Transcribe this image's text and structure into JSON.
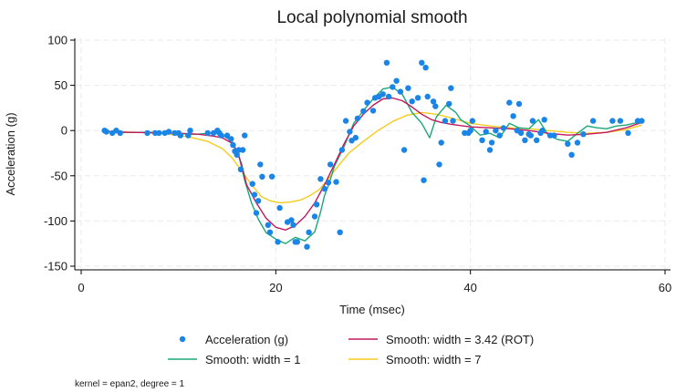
{
  "chart_data": {
    "type": "scatter",
    "title": "Local polynomial smooth",
    "xlabel": "Time (msec)",
    "ylabel": "Acceleration (g)",
    "xlim": [
      0,
      60
    ],
    "ylim": [
      -150,
      100
    ],
    "xticks": [
      0,
      20,
      40,
      60
    ],
    "yticks": [
      100,
      50,
      0,
      -50,
      -100,
      -150
    ],
    "grid": true,
    "legend_position": "bottom",
    "note": "kernel = epan2, degree = 1",
    "scatter": {
      "name": "Acceleration (g)",
      "color": "#1a85e6",
      "points": [
        [
          2.4,
          0
        ],
        [
          2.6,
          -1.3
        ],
        [
          3.2,
          -2.7
        ],
        [
          3.6,
          0
        ],
        [
          4,
          -2.7
        ],
        [
          6.8,
          -2.7
        ],
        [
          7.6,
          -2.7
        ],
        [
          8,
          -2.7
        ],
        [
          8.6,
          -2.7
        ],
        [
          9,
          -1.3
        ],
        [
          9.6,
          -2.7
        ],
        [
          10,
          -2.7
        ],
        [
          10.2,
          -5.4
        ],
        [
          11,
          -5.4
        ],
        [
          11.2,
          0
        ],
        [
          13,
          -2.7
        ],
        [
          13.6,
          -2.7
        ],
        [
          14,
          0
        ],
        [
          14.2,
          -2.7
        ],
        [
          14.4,
          -5.4
        ],
        [
          15,
          -5.4
        ],
        [
          15.4,
          -9.3
        ],
        [
          15.6,
          -16
        ],
        [
          15.8,
          -22.8
        ],
        [
          16,
          -26.8
        ],
        [
          16.2,
          -21.5
        ],
        [
          16.4,
          -42.9
        ],
        [
          16.6,
          -21.5
        ],
        [
          16.8,
          -5.4
        ],
        [
          17.6,
          -59
        ],
        [
          17.8,
          -71
        ],
        [
          18,
          -91.1
        ],
        [
          18.2,
          -77.7
        ],
        [
          18.4,
          -37.5
        ],
        [
          18.6,
          -51
        ],
        [
          19.2,
          -104.4
        ],
        [
          19.4,
          -112.5
        ],
        [
          19.6,
          -50.9
        ],
        [
          20.2,
          -123.1
        ],
        [
          20.4,
          -85.6
        ],
        [
          21.2,
          -101.2
        ],
        [
          21.6,
          -99.1
        ],
        [
          21.8,
          -104.4
        ],
        [
          22,
          -123.1
        ],
        [
          22.2,
          -123.1
        ],
        [
          23.2,
          -128.5
        ],
        [
          23.4,
          -112.5
        ],
        [
          24,
          -95.1
        ],
        [
          24.2,
          -81.8
        ],
        [
          24.6,
          -53.5
        ],
        [
          25,
          -64.4
        ],
        [
          25.4,
          -57.6
        ],
        [
          25.6,
          -37.5
        ],
        [
          26.2,
          -56.9
        ],
        [
          26.6,
          -112.5
        ],
        [
          26.8,
          -21.5
        ],
        [
          27.2,
          10.7
        ],
        [
          27.6,
          -1.3
        ],
        [
          27.8,
          -11.1
        ],
        [
          28.2,
          -8
        ],
        [
          28.4,
          13.4
        ],
        [
          29,
          21.5
        ],
        [
          29.4,
          30.8
        ],
        [
          30,
          22
        ],
        [
          30.2,
          36.2
        ],
        [
          30.6,
          37.5
        ],
        [
          31,
          40.2
        ],
        [
          31.4,
          75
        ],
        [
          31.6,
          37.5
        ],
        [
          32,
          48.2
        ],
        [
          32.4,
          54.9
        ],
        [
          32.8,
          42.9
        ],
        [
          33.2,
          -21.5
        ],
        [
          33.6,
          46.9
        ],
        [
          34,
          32.3
        ],
        [
          34.6,
          36.2
        ],
        [
          35,
          75
        ],
        [
          35.2,
          -54.9
        ],
        [
          35.4,
          69.6
        ],
        [
          35.6,
          37.5
        ],
        [
          36.2,
          32.2
        ],
        [
          36.4,
          26.8
        ],
        [
          36.8,
          -37.5
        ],
        [
          37,
          -13.4
        ],
        [
          37.4,
          10.7
        ],
        [
          37.8,
          29.5
        ],
        [
          38,
          46.9
        ],
        [
          38.2,
          10.7
        ],
        [
          39.4,
          -2.7
        ],
        [
          39.8,
          -2.7
        ],
        [
          40,
          0
        ],
        [
          40.2,
          10.7
        ],
        [
          41.2,
          -10.7
        ],
        [
          41.6,
          -1.3
        ],
        [
          42,
          -21.5
        ],
        [
          42.2,
          -13.3
        ],
        [
          42.6,
          0
        ],
        [
          43,
          -5.4
        ],
        [
          43.4,
          2.7
        ],
        [
          44,
          30.8
        ],
        [
          44.4,
          16
        ],
        [
          44.8,
          0
        ],
        [
          45,
          29.4
        ],
        [
          45.2,
          -2.7
        ],
        [
          45.6,
          -10.7
        ],
        [
          46,
          -4
        ],
        [
          46.2,
          -5.4
        ],
        [
          46.4,
          10.7
        ],
        [
          46.8,
          -10.7
        ],
        [
          47.2,
          -2.7
        ],
        [
          47.4,
          0
        ],
        [
          47.6,
          12
        ],
        [
          48.2,
          -5.4
        ],
        [
          48.6,
          -5.4
        ],
        [
          50,
          -14.7
        ],
        [
          50.4,
          -26.8
        ],
        [
          51,
          -13.4
        ],
        [
          51.6,
          -4
        ],
        [
          52.6,
          10.7
        ],
        [
          54.6,
          10.7
        ],
        [
          55.4,
          10.7
        ],
        [
          56.2,
          -2.7
        ],
        [
          57.2,
          10.7
        ],
        [
          57.6,
          10.7
        ]
      ]
    },
    "series": [
      {
        "name": "Smooth: width = 3.42 (ROT)",
        "color": "#c1185e",
        "x": [
          2.4,
          5,
          8,
          10,
          12,
          13.5,
          14.5,
          15.5,
          16,
          16.5,
          17,
          18,
          19,
          20,
          21,
          22,
          23,
          24,
          25,
          26,
          27,
          28,
          29,
          30,
          31,
          32,
          33,
          34,
          35,
          36,
          37,
          38,
          40,
          42,
          44,
          46,
          48,
          50,
          52,
          54,
          56,
          57.6
        ],
        "y": [
          -1,
          -2,
          -2.5,
          -3,
          -4,
          -6,
          -8,
          -14,
          -22,
          -38,
          -60,
          -80,
          -97,
          -107,
          -110,
          -105,
          -95,
          -80,
          -60,
          -38,
          -15,
          5,
          18,
          28,
          35,
          36,
          33,
          26,
          18,
          12,
          9,
          7,
          4,
          3,
          2,
          0,
          -3,
          -5,
          -4,
          -2,
          3,
          9
        ]
      },
      {
        "name": "Smooth: width = 1",
        "color": "#1aa877",
        "x": [
          2.4,
          4,
          6,
          8,
          10,
          11,
          12,
          13,
          14,
          14.5,
          15.5,
          16.2,
          16.8,
          17.5,
          18.2,
          19,
          20,
          21,
          22,
          23,
          24,
          24.6,
          25,
          25.5,
          26,
          27,
          28,
          29,
          30,
          31,
          32,
          33,
          34,
          35,
          35.8,
          36.5,
          37.5,
          38.5,
          39,
          40,
          41,
          42,
          43,
          44,
          45,
          46,
          47,
          48,
          49,
          50,
          51,
          52,
          53,
          54,
          55,
          56,
          57.6
        ],
        "y": [
          -1,
          -2,
          -2,
          -2,
          -3,
          -4,
          -4,
          -3,
          -3,
          -5,
          -12,
          -28,
          -55,
          -80,
          -98,
          -113,
          -120,
          -125,
          -118,
          -122,
          -112,
          -90,
          -72,
          -58,
          -40,
          -18,
          8,
          22,
          35,
          46,
          48,
          40,
          20,
          8,
          -8,
          15,
          28,
          20,
          12,
          5,
          -5,
          -3,
          -8,
          8,
          3,
          2,
          12,
          -5,
          -10,
          -12,
          -3,
          5,
          3,
          2,
          5,
          6,
          10
        ]
      },
      {
        "name": "Smooth: width = 7",
        "color": "#f5cc1c",
        "x": [
          2.4,
          6,
          9,
          11,
          13,
          14.5,
          15.5,
          16.5,
          17.5,
          18.5,
          19.5,
          20.5,
          21.5,
          22.5,
          23.5,
          24.5,
          25.5,
          26.5,
          27.5,
          29,
          30.5,
          32,
          33.5,
          35,
          36.5,
          38,
          40,
          42,
          44,
          46,
          48,
          50,
          52,
          54,
          56,
          57.6
        ],
        "y": [
          -1,
          -2,
          -4,
          -7,
          -12,
          -20,
          -30,
          -45,
          -60,
          -73,
          -78,
          -80,
          -79,
          -77,
          -72,
          -65,
          -52,
          -38,
          -25,
          -12,
          0,
          10,
          17,
          20,
          18,
          14,
          8,
          5,
          3,
          2,
          0,
          -2,
          -3,
          -2,
          1,
          6
        ]
      }
    ]
  },
  "legend": {
    "scatter_label": "Acceleration (g)",
    "rot_label": "Smooth: width = 3.42 (ROT)",
    "w1_label": "Smooth: width = 1",
    "w7_label": "Smooth: width = 7"
  }
}
